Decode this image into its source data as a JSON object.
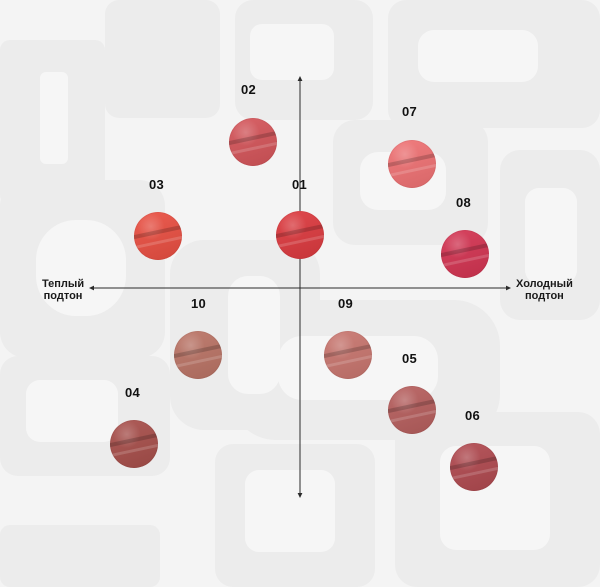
{
  "axes": {
    "warm_label_line1": "Теплый",
    "warm_label_line2": "подтон",
    "cool_label_line1": "Холодный",
    "cool_label_line2": "подтон"
  },
  "swatches": {
    "s01": {
      "label": "01",
      "color": "#dd3a3f"
    },
    "s02": {
      "label": "02",
      "color": "#d5555a"
    },
    "s03": {
      "label": "03",
      "color": "#ea4f42"
    },
    "s04": {
      "label": "04",
      "color": "#a84f4b"
    },
    "s05": {
      "label": "05",
      "color": "#b75f5e"
    },
    "s06": {
      "label": "06",
      "color": "#b14a50"
    },
    "s07": {
      "label": "07",
      "color": "#f07274"
    },
    "s08": {
      "label": "08",
      "color": "#d43452"
    },
    "s09": {
      "label": "09",
      "color": "#c9766f"
    },
    "s10": {
      "label": "10",
      "color": "#bb7466"
    }
  }
}
